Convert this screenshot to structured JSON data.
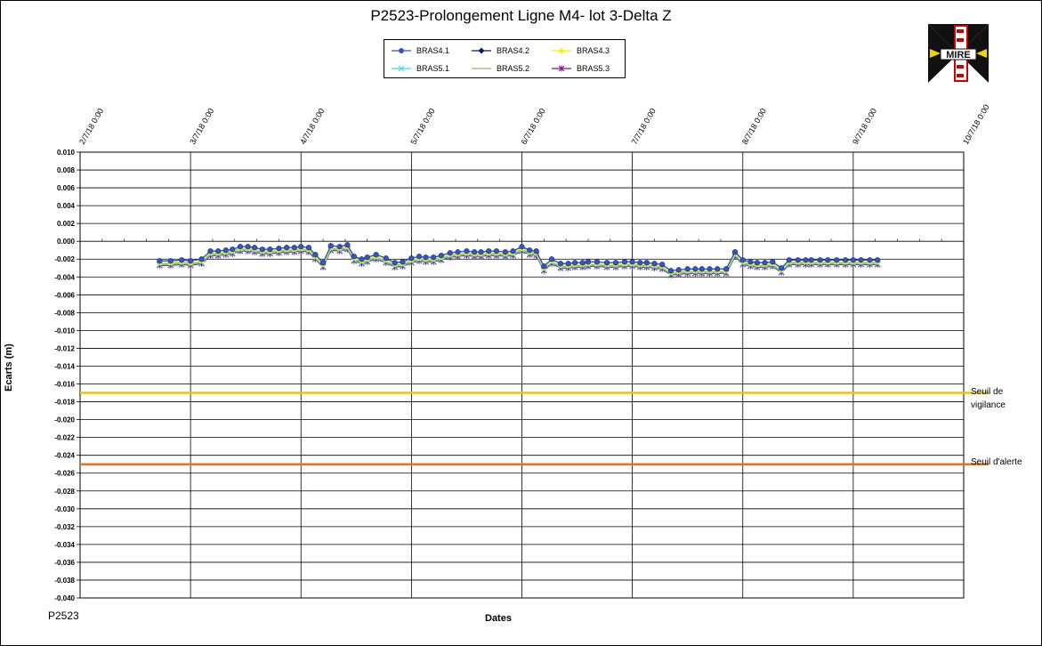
{
  "footer_code": "P2523",
  "chart_data": {
    "type": "line",
    "title": "P2523-Prolongement  Ligne  M4-  lot  3-Delta  Z",
    "xlabel": "Dates",
    "ylabel": "Ecarts (m)",
    "ylim": [
      -0.04,
      0.01
    ],
    "y_ticks": [
      "0.010",
      "0.008",
      "0.006",
      "0.004",
      "0.002",
      "0.000",
      "-0.002",
      "-0.004",
      "-0.006",
      "-0.008",
      "-0.010",
      "-0.012",
      "-0.014",
      "-0.016",
      "-0.018",
      "-0.020",
      "-0.022",
      "-0.024",
      "-0.026",
      "-0.028",
      "-0.030",
      "-0.032",
      "-0.034",
      "-0.036",
      "-0.038",
      "-0.040"
    ],
    "x_ticks": [
      "2/7/18 0:00",
      "3/7/18 0:00",
      "4/7/18 0:00",
      "5/7/18 0:00",
      "6/7/18 0:00",
      "7/7/18 0:00",
      "8/7/18 0:00",
      "9/7/18 0:00",
      "10/7/18 0:00"
    ],
    "grid": true,
    "legend_position": "top-center",
    "x": [
      0.72,
      0.82,
      0.92,
      1.0,
      1.1,
      1.18,
      1.25,
      1.32,
      1.38,
      1.45,
      1.52,
      1.58,
      1.65,
      1.72,
      1.8,
      1.87,
      1.94,
      2.0,
      2.07,
      2.13,
      2.2,
      2.27,
      2.35,
      2.42,
      2.48,
      2.55,
      2.6,
      2.68,
      2.77,
      2.85,
      2.92,
      3.0,
      3.07,
      3.13,
      3.2,
      3.27,
      3.35,
      3.42,
      3.5,
      3.57,
      3.63,
      3.7,
      3.77,
      3.85,
      3.92,
      4.0,
      4.07,
      4.13,
      4.2,
      4.27,
      4.35,
      4.42,
      4.48,
      4.55,
      4.6,
      4.68,
      4.77,
      4.85,
      4.93,
      5.0,
      5.07,
      5.13,
      5.2,
      5.27,
      5.35,
      5.42,
      5.5,
      5.57,
      5.63,
      5.7,
      5.77,
      5.85,
      5.93,
      6.0,
      6.07,
      6.13,
      6.2,
      6.27,
      6.35,
      6.42,
      6.5,
      6.57,
      6.62,
      6.7,
      6.77,
      6.85,
      6.93,
      7.0,
      7.07,
      7.15,
      7.22
    ],
    "series": [
      {
        "name": "BRAS4.1",
        "color": "#3355cc",
        "marker": "circle",
        "values": [
          -0.0022,
          -0.0022,
          -0.0021,
          -0.0022,
          -0.002,
          -0.0011,
          -0.0011,
          -0.001,
          -0.0009,
          -0.0006,
          -0.0006,
          -0.0007,
          -0.0009,
          -0.0009,
          -0.0008,
          -0.0007,
          -0.0007,
          -0.0006,
          -0.0007,
          -0.0015,
          -0.0024,
          -0.0005,
          -0.0006,
          -0.0004,
          -0.0017,
          -0.002,
          -0.0018,
          -0.0015,
          -0.0019,
          -0.0024,
          -0.0023,
          -0.0019,
          -0.0017,
          -0.0018,
          -0.0018,
          -0.0016,
          -0.0013,
          -0.0012,
          -0.0011,
          -0.0012,
          -0.0012,
          -0.0011,
          -0.0011,
          -0.0012,
          -0.0011,
          -0.0006,
          -0.001,
          -0.0011,
          -0.0028,
          -0.002,
          -0.0025,
          -0.0025,
          -0.0024,
          -0.0024,
          -0.0023,
          -0.0023,
          -0.0024,
          -0.0024,
          -0.0023,
          -0.0023,
          -0.0024,
          -0.0024,
          -0.0025,
          -0.0026,
          -0.0033,
          -0.0032,
          -0.0031,
          -0.0031,
          -0.0031,
          -0.0031,
          -0.0031,
          -0.0031,
          -0.0012,
          -0.0021,
          -0.0023,
          -0.0024,
          -0.0024,
          -0.0023,
          -0.003,
          -0.0021,
          -0.0021,
          -0.0021,
          -0.0021,
          -0.0021,
          -0.0021,
          -0.0021,
          -0.0021,
          -0.0021,
          -0.0021,
          -0.0021,
          -0.0021
        ]
      },
      {
        "name": "BRAS4.2",
        "color": "#0d1a66",
        "marker": "diamond",
        "values": [
          -0.0022,
          -0.0022,
          -0.0021,
          -0.0022,
          -0.002,
          -0.0011,
          -0.0011,
          -0.001,
          -0.0009,
          -0.0006,
          -0.0006,
          -0.0007,
          -0.0009,
          -0.0009,
          -0.0008,
          -0.0007,
          -0.0007,
          -0.0006,
          -0.0007,
          -0.0015,
          -0.0024,
          -0.0005,
          -0.0006,
          -0.0004,
          -0.0017,
          -0.002,
          -0.0018,
          -0.0015,
          -0.0019,
          -0.0024,
          -0.0023,
          -0.0019,
          -0.0017,
          -0.0018,
          -0.0018,
          -0.0016,
          -0.0013,
          -0.0012,
          -0.0011,
          -0.0012,
          -0.0012,
          -0.0011,
          -0.0011,
          -0.0012,
          -0.0011,
          -0.0006,
          -0.001,
          -0.0011,
          -0.0028,
          -0.002,
          -0.0025,
          -0.0025,
          -0.0024,
          -0.0024,
          -0.0023,
          -0.0023,
          -0.0024,
          -0.0024,
          -0.0023,
          -0.0023,
          -0.0024,
          -0.0024,
          -0.0025,
          -0.0026,
          -0.0033,
          -0.0032,
          -0.0031,
          -0.0031,
          -0.0031,
          -0.0031,
          -0.0031,
          -0.0031,
          -0.0012,
          -0.0021,
          -0.0023,
          -0.0024,
          -0.0024,
          -0.0023,
          -0.003,
          -0.0021,
          -0.0021,
          -0.0021,
          -0.0021,
          -0.0021,
          -0.0021,
          -0.0021,
          -0.0021,
          -0.0021,
          -0.0021,
          -0.0021,
          -0.0021
        ]
      },
      {
        "name": "BRAS4.3",
        "color": "#ffee00",
        "marker": "triangle",
        "values": [
          -0.0024,
          -0.0024,
          -0.0023,
          -0.0024,
          -0.0022,
          -0.0013,
          -0.0013,
          -0.0012,
          -0.0011,
          -0.0008,
          -0.0008,
          -0.0009,
          -0.0011,
          -0.0011,
          -0.001,
          -0.0009,
          -0.0009,
          -0.0008,
          -0.0009,
          -0.0017,
          -0.0026,
          -0.0007,
          -0.0008,
          -0.0006,
          -0.0019,
          -0.0022,
          -0.002,
          -0.0017,
          -0.0021,
          -0.0026,
          -0.0025,
          -0.0021,
          -0.0019,
          -0.002,
          -0.002,
          -0.0018,
          -0.0015,
          -0.0014,
          -0.0013,
          -0.0014,
          -0.0014,
          -0.0013,
          -0.0013,
          -0.0014,
          -0.0013,
          -0.0008,
          -0.0012,
          -0.0013,
          -0.003,
          -0.0022,
          -0.0027,
          -0.0027,
          -0.0026,
          -0.0026,
          -0.0025,
          -0.0025,
          -0.0026,
          -0.0026,
          -0.0025,
          -0.0025,
          -0.0026,
          -0.0026,
          -0.0027,
          -0.0028,
          -0.0035,
          -0.0034,
          -0.0033,
          -0.0033,
          -0.0033,
          -0.0033,
          -0.0033,
          -0.0033,
          -0.0014,
          -0.0023,
          -0.0025,
          -0.0026,
          -0.0026,
          -0.0025,
          -0.0032,
          -0.0023,
          -0.0023,
          -0.0023,
          -0.0023,
          -0.0023,
          -0.0023,
          -0.0023,
          -0.0023,
          -0.0023,
          -0.0023,
          -0.0023,
          -0.0023
        ]
      },
      {
        "name": "BRAS5.1",
        "color": "#33dddd",
        "marker": "x",
        "values": [
          -0.0026,
          -0.0026,
          -0.0025,
          -0.0026,
          -0.0024,
          -0.0015,
          -0.0015,
          -0.0014,
          -0.0013,
          -0.001,
          -0.001,
          -0.0011,
          -0.0013,
          -0.0013,
          -0.0012,
          -0.0011,
          -0.0011,
          -0.001,
          -0.0011,
          -0.0019,
          -0.0028,
          -0.0009,
          -0.001,
          -0.0008,
          -0.0021,
          -0.0024,
          -0.0022,
          -0.0019,
          -0.0023,
          -0.0028,
          -0.0027,
          -0.0023,
          -0.0021,
          -0.0022,
          -0.0022,
          -0.002,
          -0.0017,
          -0.0016,
          -0.0015,
          -0.0016,
          -0.0016,
          -0.0015,
          -0.0015,
          -0.0016,
          -0.0015,
          -0.001,
          -0.0014,
          -0.0015,
          -0.0032,
          -0.0024,
          -0.0029,
          -0.0029,
          -0.0028,
          -0.0028,
          -0.0027,
          -0.0027,
          -0.0028,
          -0.0028,
          -0.0027,
          -0.0027,
          -0.0028,
          -0.0028,
          -0.0029,
          -0.003,
          -0.0037,
          -0.0036,
          -0.0035,
          -0.0035,
          -0.0035,
          -0.0035,
          -0.0035,
          -0.0035,
          -0.0016,
          -0.0025,
          -0.0027,
          -0.0028,
          -0.0028,
          -0.0027,
          -0.0034,
          -0.0025,
          -0.0025,
          -0.0025,
          -0.0025,
          -0.0025,
          -0.0025,
          -0.0025,
          -0.0025,
          -0.0025,
          -0.0025,
          -0.0025,
          -0.0025
        ]
      },
      {
        "name": "BRAS5.2",
        "color": "#aaaa66",
        "marker": "none",
        "values": [
          -0.0025,
          -0.0025,
          -0.0024,
          -0.0025,
          -0.0023,
          -0.0014,
          -0.0014,
          -0.0013,
          -0.0012,
          -0.0009,
          -0.0009,
          -0.001,
          -0.0012,
          -0.0012,
          -0.0011,
          -0.001,
          -0.001,
          -0.0009,
          -0.001,
          -0.0018,
          -0.0027,
          -0.0008,
          -0.0009,
          -0.0007,
          -0.002,
          -0.0023,
          -0.0021,
          -0.0018,
          -0.0022,
          -0.0027,
          -0.0026,
          -0.0022,
          -0.002,
          -0.0021,
          -0.0021,
          -0.0019,
          -0.0016,
          -0.0015,
          -0.0014,
          -0.0015,
          -0.0015,
          -0.0014,
          -0.0014,
          -0.0015,
          -0.0014,
          -0.0009,
          -0.0013,
          -0.0014,
          -0.0031,
          -0.0023,
          -0.0028,
          -0.0028,
          -0.0027,
          -0.0027,
          -0.0026,
          -0.0026,
          -0.0027,
          -0.0027,
          -0.0026,
          -0.0026,
          -0.0027,
          -0.0027,
          -0.0028,
          -0.0029,
          -0.0036,
          -0.0035,
          -0.0034,
          -0.0034,
          -0.0034,
          -0.0034,
          -0.0034,
          -0.0034,
          -0.0015,
          -0.0024,
          -0.0026,
          -0.0027,
          -0.0027,
          -0.0026,
          -0.0033,
          -0.0024,
          -0.0024,
          -0.0024,
          -0.0024,
          -0.0024,
          -0.0024,
          -0.0024,
          -0.0024,
          -0.0024,
          -0.0024,
          -0.0024,
          -0.0024
        ]
      },
      {
        "name": "BRAS5.3",
        "color": "#881188",
        "marker": "star",
        "values": [
          -0.0027,
          -0.0027,
          -0.0026,
          -0.0027,
          -0.0025,
          -0.0016,
          -0.0016,
          -0.0015,
          -0.0014,
          -0.0011,
          -0.0011,
          -0.0012,
          -0.0014,
          -0.0014,
          -0.0013,
          -0.0012,
          -0.0012,
          -0.0011,
          -0.0012,
          -0.002,
          -0.0029,
          -0.001,
          -0.0011,
          -0.0009,
          -0.0022,
          -0.0025,
          -0.0023,
          -0.002,
          -0.0024,
          -0.0029,
          -0.0028,
          -0.0024,
          -0.0022,
          -0.0023,
          -0.0023,
          -0.0021,
          -0.0018,
          -0.0017,
          -0.0016,
          -0.0017,
          -0.0017,
          -0.0016,
          -0.0016,
          -0.0017,
          -0.0016,
          -0.0011,
          -0.0015,
          -0.0016,
          -0.0033,
          -0.0025,
          -0.003,
          -0.003,
          -0.0029,
          -0.0029,
          -0.0028,
          -0.0028,
          -0.0029,
          -0.0029,
          -0.0028,
          -0.0028,
          -0.0029,
          -0.0029,
          -0.003,
          -0.0031,
          -0.0038,
          -0.0037,
          -0.0036,
          -0.0036,
          -0.0036,
          -0.0036,
          -0.0036,
          -0.0036,
          -0.0017,
          -0.0026,
          -0.0028,
          -0.0029,
          -0.0029,
          -0.0028,
          -0.0035,
          -0.0026,
          -0.0026,
          -0.0026,
          -0.0026,
          -0.0026,
          -0.0026,
          -0.0026,
          -0.0026,
          -0.0026,
          -0.0026,
          -0.0026,
          -0.0026
        ]
      }
    ],
    "thresholds": [
      {
        "label": "Seuil de vigilance",
        "value": -0.017,
        "color": "#f2c200"
      },
      {
        "label": "Seuil d'alerte",
        "value": -0.025,
        "color": "#e8731a"
      }
    ]
  }
}
